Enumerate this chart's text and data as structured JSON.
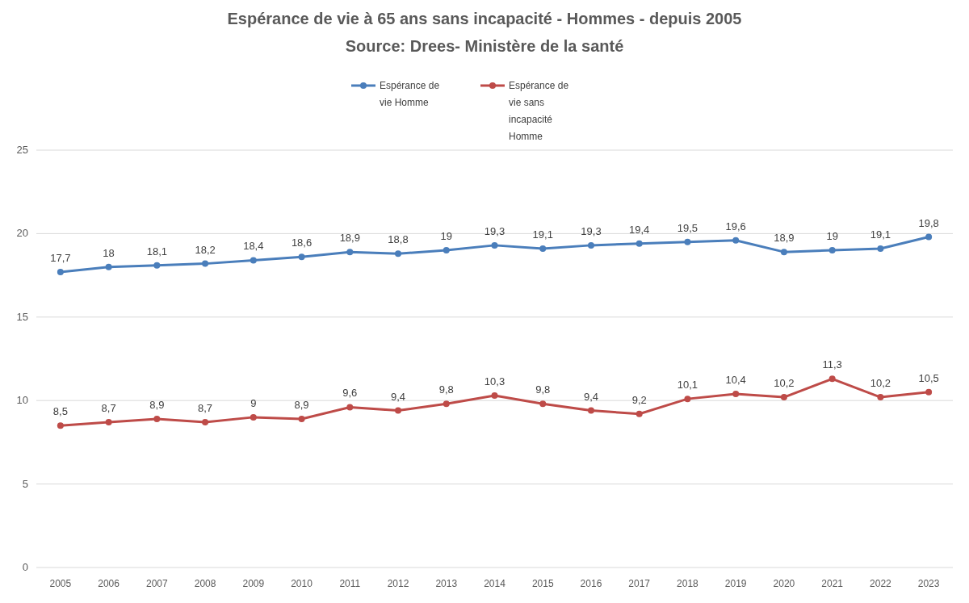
{
  "chart_data": {
    "type": "line",
    "title": "Espérance de vie à 65 ans sans incapacité - Hommes - depuis 2005",
    "subtitle": "Source: Drees- Ministère de la santé",
    "categories": [
      "2005",
      "2006",
      "2007",
      "2008",
      "2009",
      "2010",
      "2011",
      "2012",
      "2013",
      "2014",
      "2015",
      "2016",
      "2017",
      "2018",
      "2019",
      "2020",
      "2021",
      "2022",
      "2023"
    ],
    "series": [
      {
        "name": "Espérance de vie Homme",
        "color": "#4a7ebb",
        "values": [
          17.7,
          18,
          18.1,
          18.2,
          18.4,
          18.6,
          18.9,
          18.8,
          19,
          19.3,
          19.1,
          19.3,
          19.4,
          19.5,
          19.6,
          18.9,
          19,
          19.1,
          19.8
        ],
        "value_labels": [
          "17,7",
          "18",
          "18,1",
          "18,2",
          "18,4",
          "18,6",
          "18,9",
          "18,8",
          "19",
          "19,3",
          "19,1",
          "19,3",
          "19,4",
          "19,5",
          "19,6",
          "18,9",
          "19",
          "19,1",
          "19,8"
        ]
      },
      {
        "name": "Espérance de vie sans incapacité Homme",
        "color": "#be4b48",
        "values": [
          8.5,
          8.7,
          8.9,
          8.7,
          9,
          8.9,
          9.6,
          9.4,
          9.8,
          10.3,
          9.8,
          9.4,
          9.2,
          10.1,
          10.4,
          10.2,
          11.3,
          10.2,
          10.5
        ],
        "value_labels": [
          "8,5",
          "8,7",
          "8,9",
          "8,7",
          "9",
          "8,9",
          "9,6",
          "9,4",
          "9,8",
          "10,3",
          "9,8",
          "9,4",
          "9,2",
          "10,1",
          "10,4",
          "10,2",
          "11,3",
          "10,2",
          "10,5"
        ]
      }
    ],
    "ylim": [
      0,
      25
    ],
    "yticks": [
      0,
      5,
      10,
      15,
      20,
      25
    ],
    "grid": "y",
    "legend": "top",
    "marker": "circle",
    "line_style": "solid"
  }
}
